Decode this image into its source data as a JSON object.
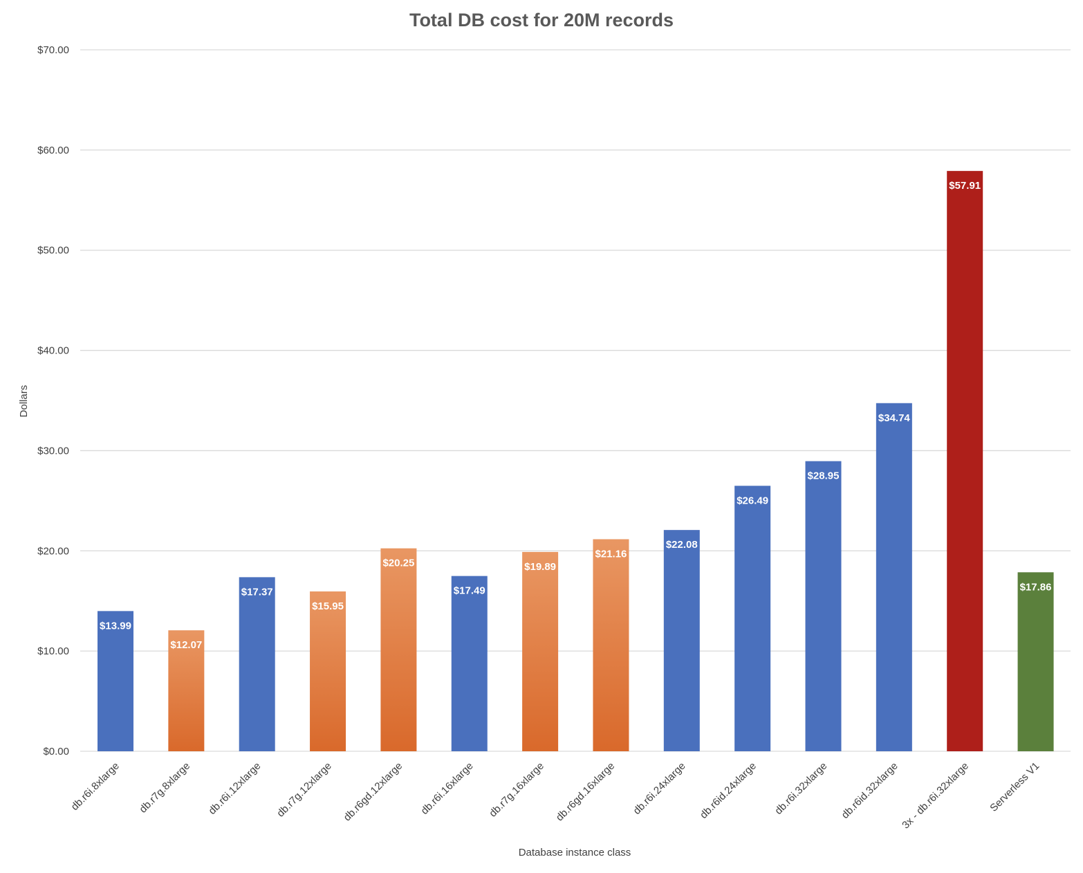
{
  "chart_data": {
    "type": "bar",
    "title": "Total DB cost for 20M records",
    "xlabel": "Database instance class",
    "ylabel": "Dollars",
    "ylim": [
      0,
      70
    ],
    "yticks": [
      "$0.00",
      "$10.00",
      "$20.00",
      "$30.00",
      "$40.00",
      "$50.00",
      "$60.00",
      "$70.00"
    ],
    "grid": true,
    "legend": "none",
    "categories": [
      "db.r6i.8xlarge",
      "db.r7g.8xlarge",
      "db.r6i.12xlarge",
      "db.r7g.12xlarge",
      "db.r6gd.12xlarge",
      "db.r6i.16xlarge",
      "db.r7g.16xlarge",
      "db.r6gd.16xlarge",
      "db.r6i.24xlarge",
      "db.r6id.24xlarge",
      "db.r6i.32xlarge",
      "db.r6id.32xlarge",
      "3x - db.r6i.32xlarge",
      "Serverless V1"
    ],
    "values": [
      13.99,
      12.07,
      17.37,
      15.95,
      20.25,
      17.49,
      19.89,
      21.16,
      22.08,
      26.49,
      28.95,
      34.74,
      57.91,
      17.86
    ],
    "data_labels": [
      "$13.99",
      "$12.07",
      "$17.37",
      "$15.95",
      "$20.25",
      "$17.49",
      "$19.89",
      "$21.16",
      "$22.08",
      "$26.49",
      "$28.95",
      "$34.74",
      "$57.91",
      "$17.86"
    ],
    "bar_colors": [
      "blue",
      "orange",
      "blue",
      "orange",
      "orange",
      "blue",
      "orange",
      "orange",
      "blue",
      "blue",
      "blue",
      "blue",
      "red",
      "green"
    ],
    "colors": {
      "blue": "#4a70bd",
      "orange_top": "#e99763",
      "orange_bottom": "#d9692b",
      "red": "#ae1f1a",
      "green": "#5b803c",
      "grid": "#d9d9d9"
    }
  }
}
